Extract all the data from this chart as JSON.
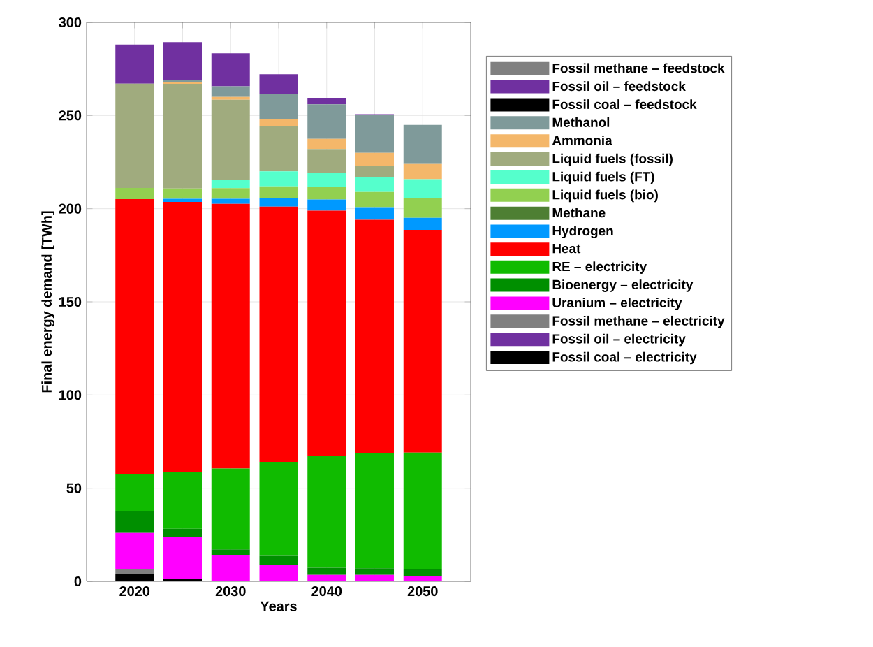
{
  "chart_data": {
    "type": "bar",
    "stacked": true,
    "xlabel": "Years",
    "ylabel": "Final energy demand [TWh]",
    "x": [
      2020,
      2025,
      2030,
      2035,
      2040,
      2045,
      2050
    ],
    "xlim": [
      2015,
      2055
    ],
    "xticks": [
      2020,
      {
        "value": 2025,
        "label": null
      },
      2030,
      {
        "value": 2035,
        "label": null
      },
      2040,
      {
        "value": 2045,
        "label": null
      },
      2050
    ],
    "ylim": [
      0,
      300
    ],
    "yticks": [
      0,
      50,
      100,
      150,
      200,
      250,
      300
    ],
    "grid": true,
    "legend": "right",
    "series": [
      {
        "name": "Fossil coal – electricity",
        "color": "#000000",
        "values": [
          4,
          1.5,
          0,
          0,
          0,
          0,
          0
        ]
      },
      {
        "name": "Fossil oil – electricity",
        "color": "#7030a0",
        "values": [
          0,
          0,
          0,
          0,
          0,
          0,
          0
        ]
      },
      {
        "name": "Fossil methane – electricity",
        "color": "#808080",
        "values": [
          2.5,
          0,
          0,
          0,
          0,
          0,
          0
        ]
      },
      {
        "name": "Uranium – electricity",
        "color": "#ff00ff",
        "values": [
          19.5,
          22.2,
          14,
          9,
          3.5,
          3.5,
          3
        ]
      },
      {
        "name": "Bioenergy – electricity",
        "color": "#008f00",
        "values": [
          11.7,
          4.5,
          3.2,
          4.7,
          3.8,
          3.5,
          3.7
        ]
      },
      {
        "name": "RE – electricity",
        "color": "#10bb00",
        "values": [
          20,
          30.4,
          43.4,
          50.4,
          60.1,
          61.6,
          62.4
        ]
      },
      {
        "name": "Heat",
        "color": "#ff0000",
        "values": [
          147.4,
          145,
          142,
          137,
          131.5,
          125.5,
          119.5
        ]
      },
      {
        "name": "Hydrogen",
        "color": "#0099ff",
        "values": [
          0,
          1.7,
          2.7,
          4.7,
          6,
          6.7,
          6.5
        ]
      },
      {
        "name": "Methane",
        "color": "#4e7f33",
        "values": [
          0,
          0,
          0,
          0,
          0,
          0,
          0
        ]
      },
      {
        "name": "Liquid fuels (bio)",
        "color": "#92d050",
        "values": [
          6,
          5.5,
          5.7,
          6.2,
          6.7,
          8.2,
          10.7
        ]
      },
      {
        "name": "Liquid fuels (FT)",
        "color": "#55ffcc",
        "values": [
          0,
          0,
          4.6,
          8,
          7.7,
          8,
          10
        ]
      },
      {
        "name": "Liquid fuels (fossil)",
        "color": "#a0ab7e",
        "values": [
          56,
          56.2,
          42.9,
          24.5,
          12.7,
          5.8,
          0
        ]
      },
      {
        "name": "Ammonia",
        "color": "#f4b76a",
        "values": [
          0,
          1,
          1.5,
          3.5,
          5.5,
          7.2,
          8.2
        ]
      },
      {
        "name": "Methanol",
        "color": "#7f9a9a",
        "values": [
          0,
          1,
          5.7,
          13.7,
          18.5,
          20.2,
          21
        ]
      },
      {
        "name": "Fossil coal – feedstock",
        "color": "#000000",
        "values": [
          0,
          0,
          0,
          0,
          0,
          0,
          0
        ]
      },
      {
        "name": "Fossil oil – feedstock",
        "color": "#7030a0",
        "values": [
          21,
          20.4,
          17.7,
          10.5,
          3.5,
          0.5,
          0
        ]
      },
      {
        "name": "Fossil methane – feedstock",
        "color": "#808080",
        "values": [
          0,
          0,
          0,
          0,
          0,
          0,
          0
        ]
      }
    ]
  }
}
